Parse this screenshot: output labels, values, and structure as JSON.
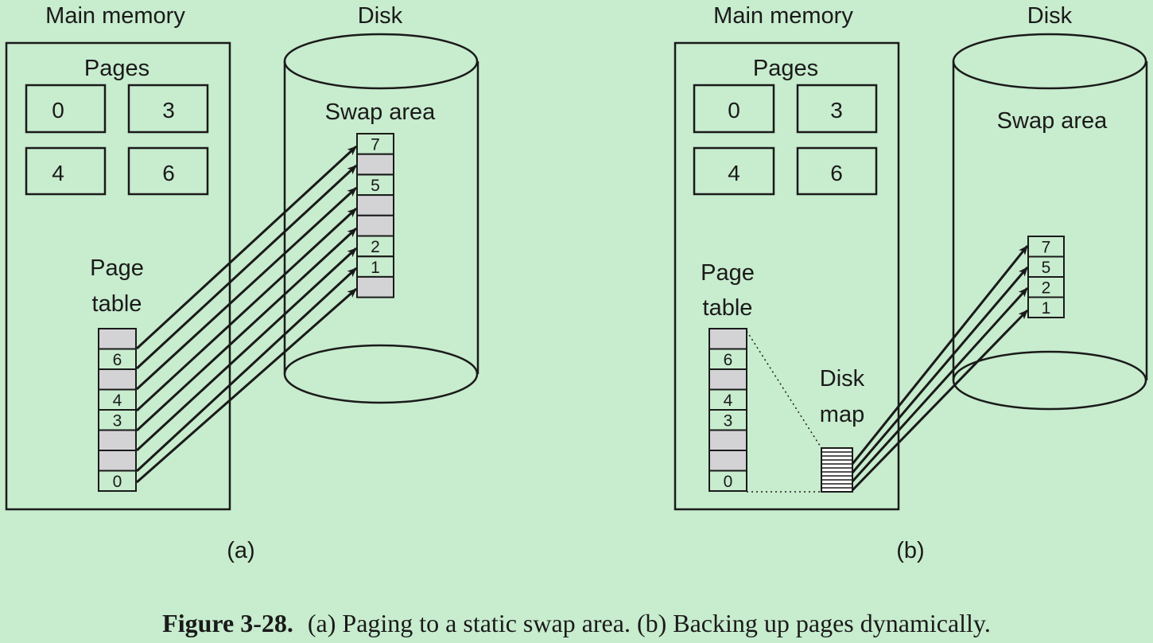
{
  "panels": [
    {
      "id": "a",
      "memory_title": "Main memory",
      "disk_title": "Disk",
      "pages_label": "Pages",
      "pages": [
        "0",
        "3",
        "4",
        "6"
      ],
      "page_table_label": [
        "Page",
        "table"
      ],
      "page_table": [
        "",
        "6",
        "",
        "4",
        "3",
        "",
        "",
        "0"
      ],
      "swap_label": "Swap area",
      "swap": [
        "7",
        "",
        "5",
        "",
        "",
        "2",
        "1",
        ""
      ],
      "sublabel": "(a)"
    },
    {
      "id": "b",
      "memory_title": "Main memory",
      "disk_title": "Disk",
      "pages_label": "Pages",
      "pages": [
        "0",
        "3",
        "4",
        "6"
      ],
      "page_table_label": [
        "Page",
        "table"
      ],
      "page_table": [
        "",
        "6",
        "",
        "4",
        "3",
        "",
        "",
        "0"
      ],
      "disk_map_label": [
        "Disk",
        "map"
      ],
      "swap_label": "Swap area",
      "swap": [
        "7",
        "5",
        "2",
        "1"
      ],
      "sublabel": "(b)"
    }
  ],
  "caption": {
    "bold": "Figure 3-28.",
    "text": "(a) Paging to a static swap area. (b) Backing up pages dynamically."
  },
  "colors": {
    "background": "#c8ecce",
    "empty_slot": "#d3d3d6",
    "line": "#1a1a1a"
  }
}
